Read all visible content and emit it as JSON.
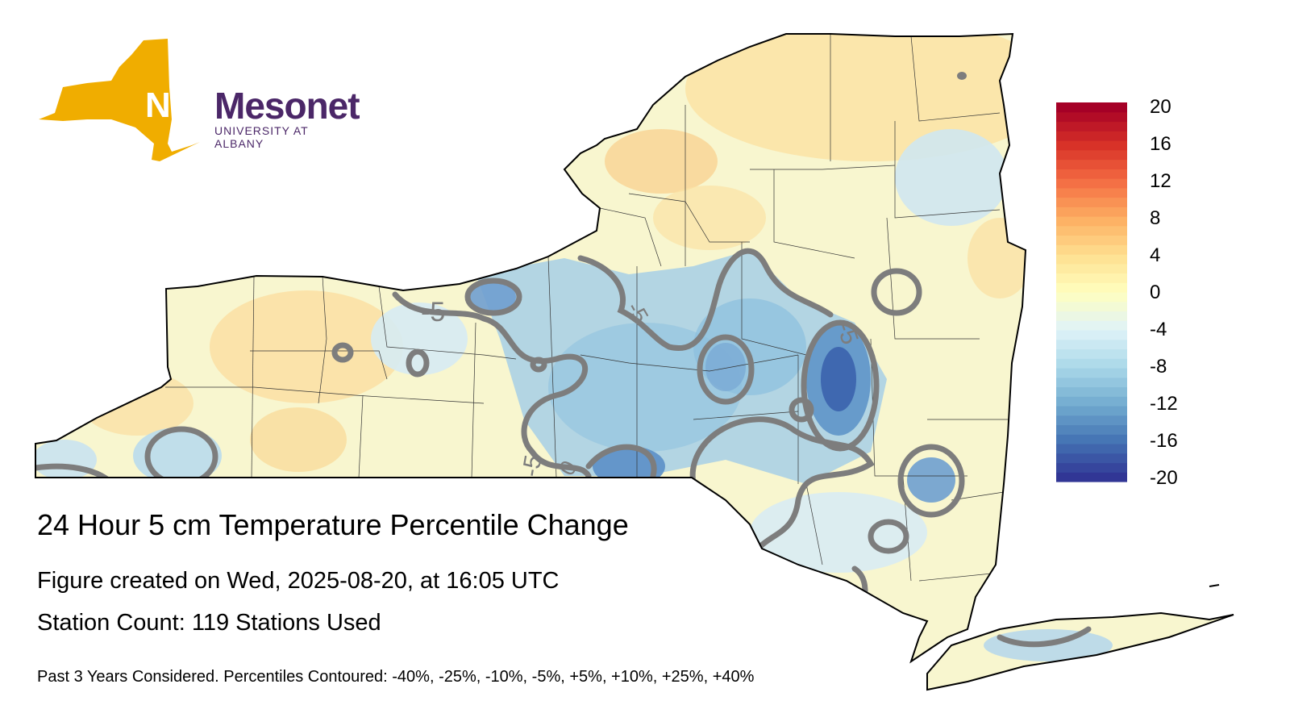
{
  "logo": {
    "primary": "NYS",
    "secondary": "Mesonet",
    "subtitle": "UNIVERSITY AT ALBANY",
    "colors": {
      "state": "#f0ad00",
      "purple": "#4b2768"
    }
  },
  "title": "24 Hour 5 cm Temperature Percentile Change",
  "created": "Figure created on Wed, 2025-08-20, at 16:05 UTC",
  "stations": "Station Count: 119 Stations Used",
  "footnote": "Past 3 Years Considered. Percentiles Contoured: -40%, -25%, -10%, -5%, +5%, +10%, +25%, +40%",
  "colorbar": {
    "ticks": [
      "20",
      "16",
      "12",
      "8",
      "4",
      "0",
      "-4",
      "-8",
      "-12",
      "-16",
      "-20"
    ],
    "colors": [
      "#313695",
      "#4575b4",
      "#74add1",
      "#abd9e9",
      "#e0f3f8",
      "#ffffbf",
      "#fee090",
      "#fdae61",
      "#f46d43",
      "#d73027",
      "#a50026"
    ]
  },
  "contour_labels": [
    "-5",
    "-5",
    "-5",
    "-5",
    "0"
  ]
}
